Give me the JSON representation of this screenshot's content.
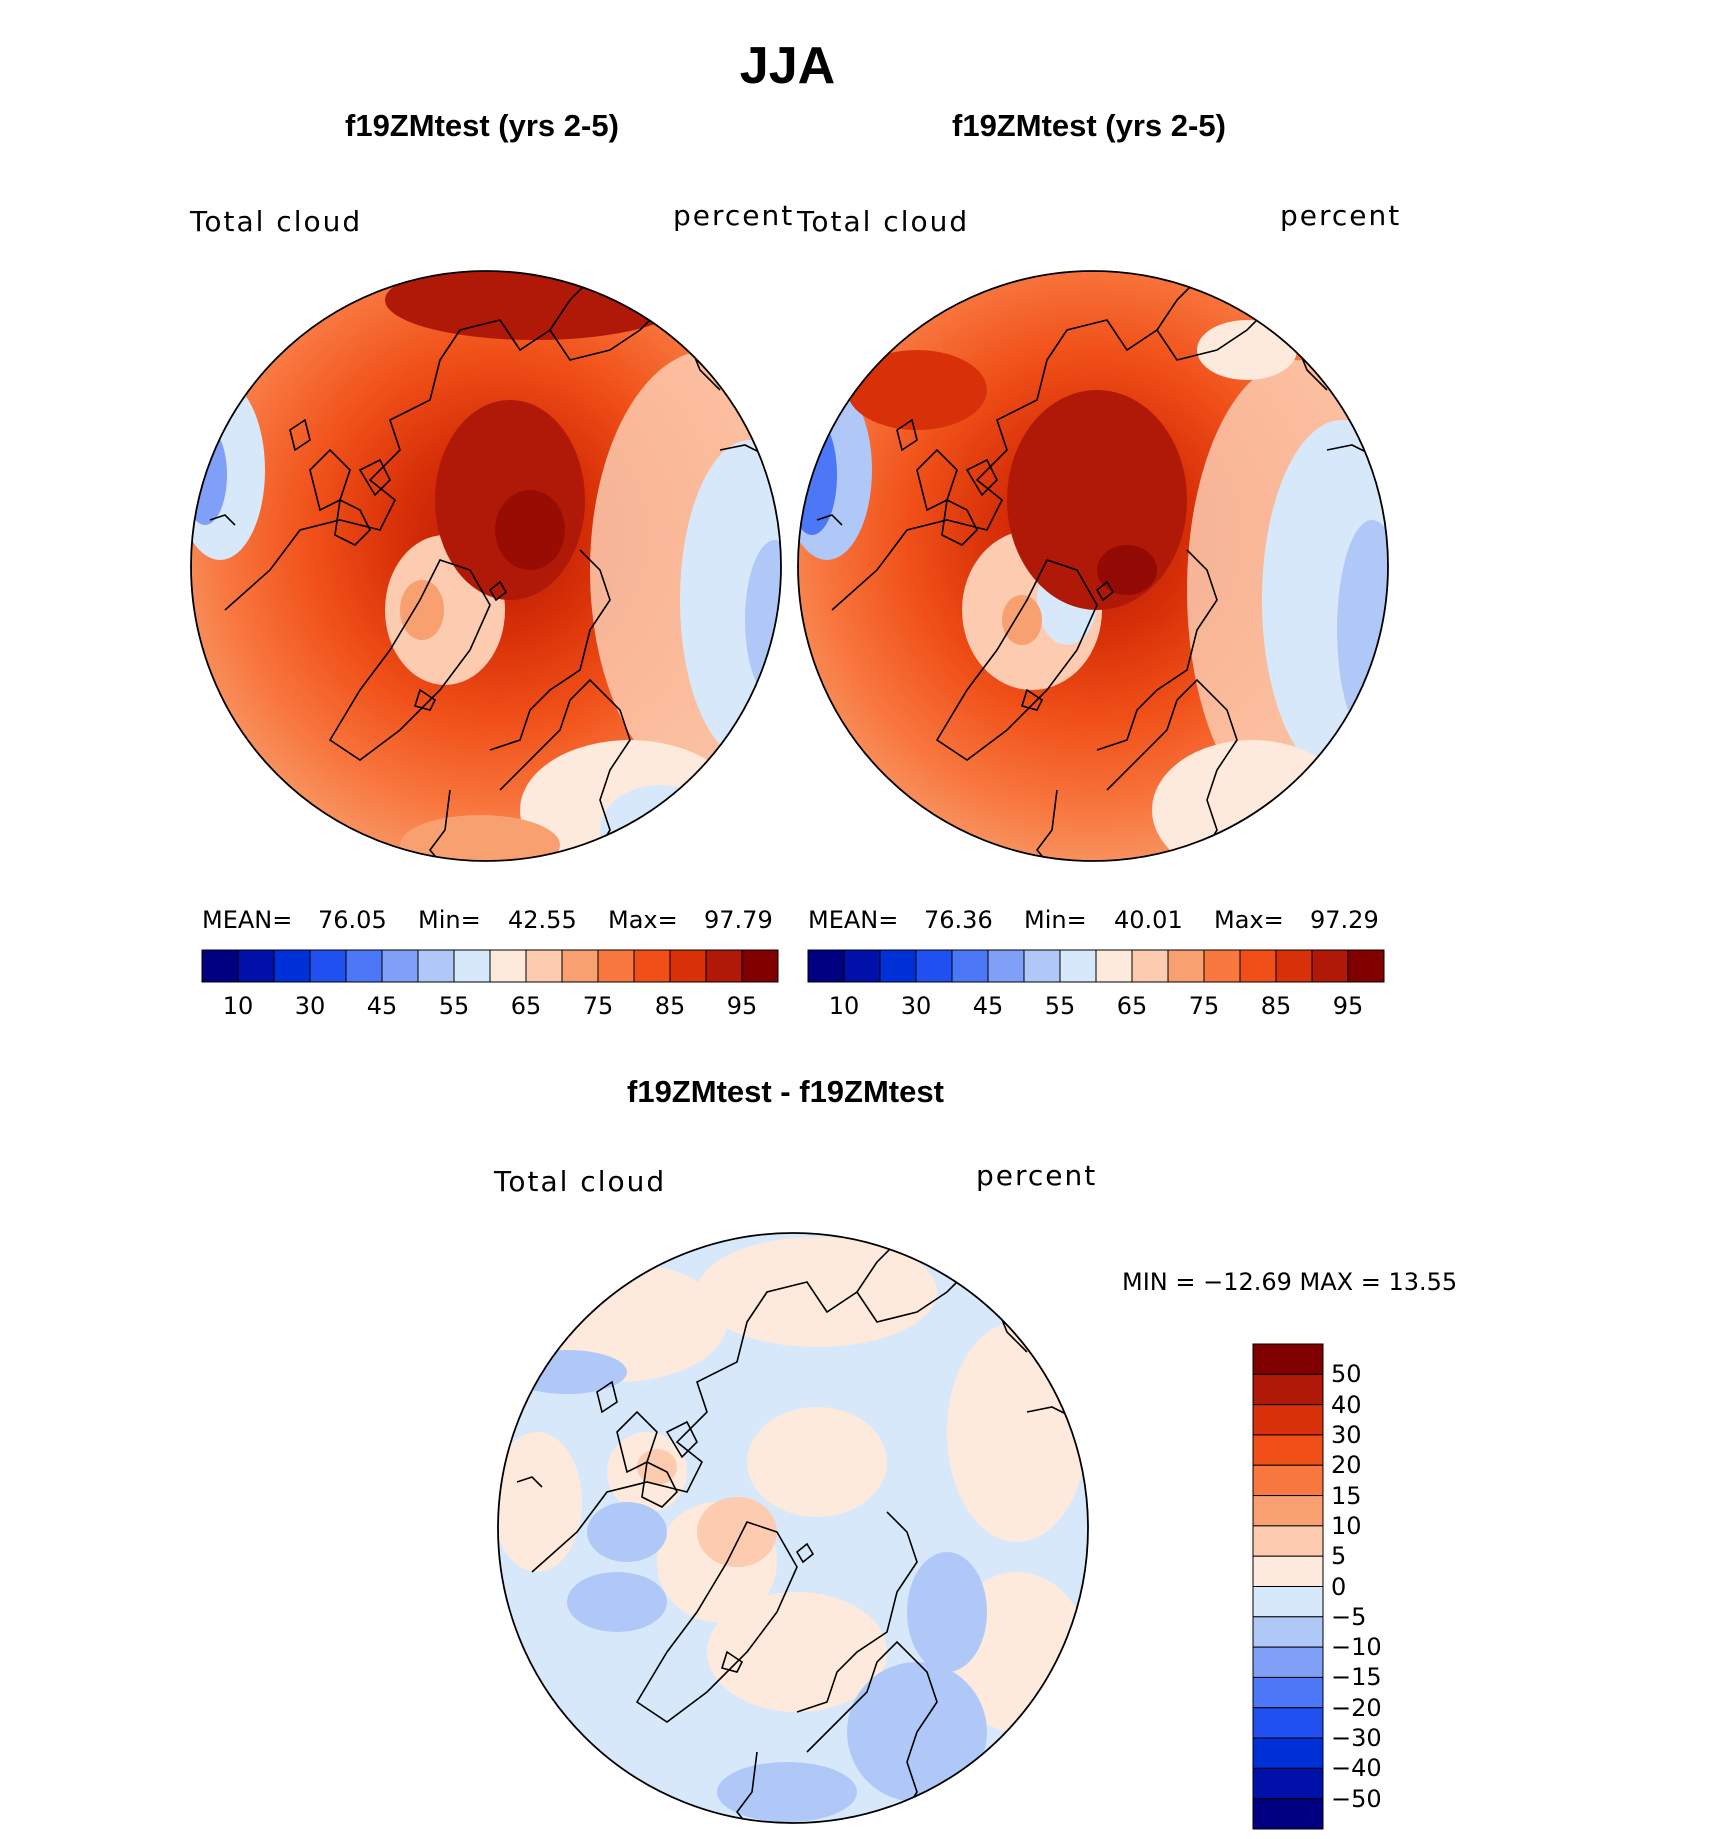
{
  "figure": {
    "season": "JJA",
    "panels": [
      {
        "title": "f19ZMtest (yrs 2-5)",
        "variable": "Total cloud",
        "units": "percent",
        "stats": {
          "mean_label": "MEAN=",
          "mean": "76.05",
          "min_label": "Min=",
          "min": "42.55",
          "max_label": "Max=",
          "max": "97.79"
        }
      },
      {
        "title": "f19ZMtest (yrs 2-5)",
        "variable": "Total cloud",
        "units": "percent",
        "stats": {
          "mean_label": "MEAN=",
          "mean": "76.36",
          "min_label": "Min=",
          "min": "40.01",
          "max_label": "Max=",
          "max": "97.29"
        }
      }
    ],
    "diff": {
      "title": "f19ZMtest - f19ZMtest",
      "variable": "Total cloud",
      "units": "percent",
      "minmax": "MIN = −12.69 MAX =   13.55"
    },
    "colorbar_top": {
      "colors": [
        "#000080",
        "#0010a8",
        "#0030d8",
        "#2050f0",
        "#4c78f8",
        "#80a0f8",
        "#b0c8f8",
        "#d8e8fb",
        "#fdeadc",
        "#fccbb0",
        "#f8a070",
        "#f87840",
        "#f05018",
        "#d83008",
        "#b01808",
        "#800000"
      ],
      "tick_labels": [
        "10",
        "30",
        "45",
        "55",
        "65",
        "75",
        "85",
        "95"
      ]
    },
    "colorbar_diff": {
      "colors": [
        "#800000",
        "#b01808",
        "#d83008",
        "#f05018",
        "#f87840",
        "#f8a070",
        "#fccbb0",
        "#fdeadc",
        "#d8e8fb",
        "#b0c8f8",
        "#80a0f8",
        "#4c78f8",
        "#2050f0",
        "#0030d8",
        "#0010a8",
        "#000080"
      ],
      "tick_labels": [
        "50",
        "40",
        "30",
        "20",
        "15",
        "10",
        "5",
        "0",
        "−5",
        "−10",
        "−15",
        "−20",
        "−30",
        "−40",
        "−50"
      ]
    }
  }
}
